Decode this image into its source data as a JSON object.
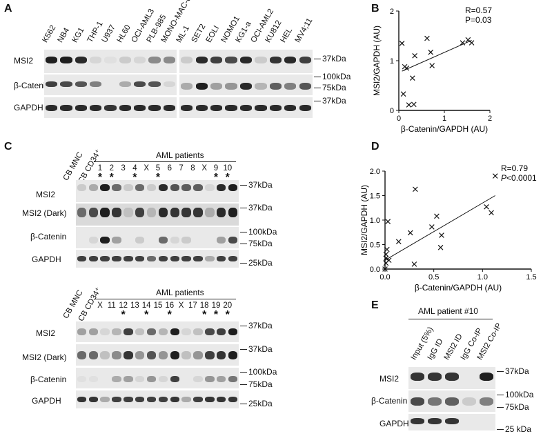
{
  "panels": {
    "A": {
      "letter": "A",
      "lanes_left": [
        "K562",
        "NB4",
        "KG1",
        "THP-1",
        "U937",
        "HL60",
        "OCI-AML3",
        "PLB-985",
        "MONO-MAC-6"
      ],
      "lanes_right": [
        "ML-1",
        "SET2",
        "EOLI",
        "NOMO1",
        "KG1-a",
        "OCI-AML2",
        "KU812",
        "HEL",
        "MV4;11"
      ],
      "rows": [
        "MSI2",
        "β-Catenin",
        "GAPDH"
      ],
      "markers": [
        "37kDa",
        "100kDa",
        "75kDa",
        "37kDa"
      ]
    },
    "B": {
      "letter": "B"
    },
    "C": {
      "letter": "C",
      "header": "AML patients",
      "controls": [
        "CB MNC",
        "CB CD34⁺"
      ],
      "top_lanes": [
        "1",
        "2",
        "3",
        "4",
        "X",
        "5",
        "6",
        "7",
        "8",
        "X",
        "9",
        "10"
      ],
      "bottom_lanes": [
        "X",
        "11",
        "12",
        "13",
        "14",
        "15",
        "16",
        "X",
        "17",
        "18",
        "19",
        "20"
      ],
      "rows": [
        "MSI2",
        "MSI2 (Dark)",
        "β-Catenin",
        "GAPDH"
      ],
      "markers_top": [
        "37kDa",
        "37kDa",
        "100kDa",
        "75kDa",
        "25kDa"
      ],
      "markers_bottom": [
        "37kDa",
        "37kDa",
        "100kDa",
        "75kDa",
        "25kDa"
      ],
      "star": "*"
    },
    "D": {
      "letter": "D"
    },
    "E": {
      "letter": "E",
      "header": "AML patient #10",
      "lanes": [
        "Input (5%)",
        "IgG ID",
        "MSI2 ID",
        "IgG Co-IP",
        "MSI2 Co-IP"
      ],
      "rows": [
        "MSI2",
        "β-Catenin",
        "GAPDH"
      ],
      "markers": [
        "37kDa",
        "100kDa",
        "75kDa",
        "25 kDa"
      ]
    }
  },
  "chart_data": [
    {
      "type": "scatter",
      "panel": "B",
      "xlabel": "β-Catenin/GAPDH (AU)",
      "ylabel": "MSI2/GAPDH (AU)",
      "xlim": [
        0,
        2
      ],
      "ylim": [
        0,
        2
      ],
      "xticks": [
        "0",
        "1",
        "2"
      ],
      "yticks": [
        "0",
        "1",
        "2"
      ],
      "stats": [
        "R=0.57",
        "P=0.03"
      ],
      "points": [
        [
          0.07,
          1.35
        ],
        [
          0.1,
          0.33
        ],
        [
          0.13,
          0.88
        ],
        [
          0.17,
          0.85
        ],
        [
          0.22,
          0.11
        ],
        [
          0.3,
          0.65
        ],
        [
          0.33,
          0.12
        ],
        [
          0.35,
          1.1
        ],
        [
          0.62,
          1.45
        ],
        [
          0.7,
          1.17
        ],
        [
          0.73,
          0.9
        ],
        [
          1.4,
          1.36
        ],
        [
          1.52,
          1.42
        ],
        [
          1.6,
          1.36
        ]
      ],
      "fit": [
        [
          0.07,
          0.79
        ],
        [
          1.6,
          1.41
        ]
      ]
    },
    {
      "type": "scatter",
      "panel": "D",
      "xlabel": "β-Catenin/GAPDH (AU)",
      "ylabel": "MSI2/GAPDH (AU)",
      "xlim": [
        0,
        1.5
      ],
      "ylim": [
        0,
        2.0
      ],
      "xticks": [
        "0.0",
        "0.5",
        "1.0",
        "1.5"
      ],
      "yticks": [
        "0.0",
        "0.5",
        "1.0",
        "1.5",
        "2.0"
      ],
      "stats": [
        "R=0.79",
        "P<0.0001"
      ],
      "points": [
        [
          0.0,
          0.0
        ],
        [
          0.01,
          0.12
        ],
        [
          0.01,
          0.22
        ],
        [
          0.01,
          0.3
        ],
        [
          0.02,
          0.4
        ],
        [
          0.03,
          0.97
        ],
        [
          0.04,
          0.18
        ],
        [
          0.14,
          0.56
        ],
        [
          0.26,
          0.74
        ],
        [
          0.3,
          0.1
        ],
        [
          0.31,
          1.63
        ],
        [
          0.48,
          0.86
        ],
        [
          0.53,
          1.08
        ],
        [
          0.57,
          0.44
        ],
        [
          0.58,
          0.69
        ],
        [
          1.04,
          1.27
        ],
        [
          1.09,
          1.15
        ],
        [
          1.13,
          1.9
        ]
      ],
      "fit": [
        [
          0.0,
          0.18
        ],
        [
          1.13,
          1.5
        ]
      ]
    }
  ]
}
